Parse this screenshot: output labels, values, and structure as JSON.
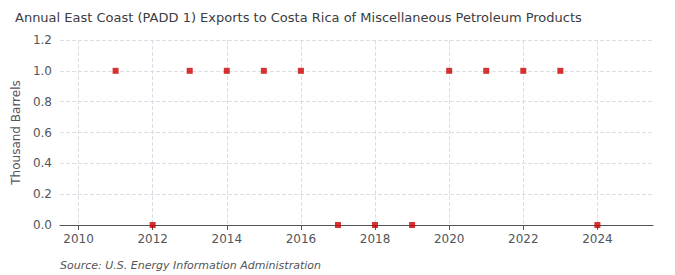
{
  "chart_data": {
    "type": "scatter",
    "title": "Annual East Coast (PADD 1) Exports to Costa Rica of Miscellaneous Petroleum Products",
    "ylabel": "Thousand Barrels",
    "annotations": [
      "Source: U.S. Energy Information Administration"
    ],
    "x": [
      2011,
      2012,
      2013,
      2014,
      2015,
      2016,
      2017,
      2018,
      2019,
      2020,
      2021,
      2022,
      2023,
      2024
    ],
    "values": [
      1.0,
      0.0,
      1.0,
      1.0,
      1.0,
      1.0,
      0.0,
      0.0,
      0.0,
      1.0,
      1.0,
      1.0,
      1.0,
      0.0
    ],
    "color": "#cc0000",
    "marker": "square",
    "xlim": [
      2009.5,
      2025.5
    ],
    "xticks": [
      2010,
      2012,
      2014,
      2016,
      2018,
      2020,
      2022,
      2024
    ],
    "ylim": [
      0.0,
      1.2
    ],
    "yticks": [
      {
        "value": 0.0,
        "label": "0.0"
      },
      0.2,
      0.4,
      0.6,
      0.8,
      {
        "value": 1.0,
        "label": "1.0"
      },
      1.2
    ],
    "grid": true
  }
}
